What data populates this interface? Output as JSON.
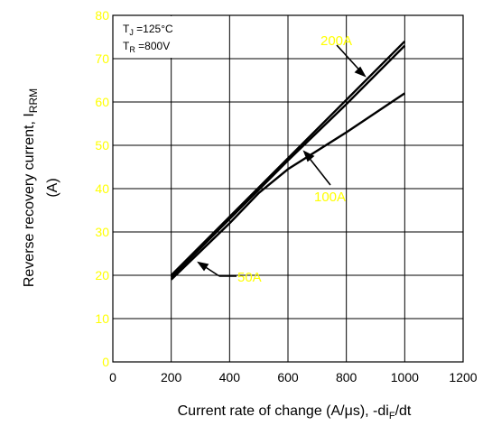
{
  "chart_data": {
    "type": "line",
    "xlabel": "Current rate of change (A/μs), -di",
    "xlabel_sub": "F",
    "xlabel_tail": "/dt",
    "ylabel_line1": "Reverse recovery current, I",
    "ylabel_sub": "RRM",
    "ylabel_line2": "(A)",
    "xlim": [
      0,
      1200
    ],
    "ylim": [
      0,
      80
    ],
    "xticks": [
      "0",
      "200",
      "400",
      "600",
      "800",
      "1000",
      "1200"
    ],
    "yticks": [
      "0",
      "10",
      "20",
      "30",
      "40",
      "50",
      "60",
      "70",
      "80"
    ],
    "grid": true,
    "conditions": {
      "tj_main": "T",
      "tj_sub": "J",
      "tj_value": " =125°C",
      "tr_main": "T",
      "tr_sub": "R",
      "tr_value": " =800V"
    },
    "series": [
      {
        "name": "200A",
        "x": [
          200,
          400,
          600,
          800,
          1000
        ],
        "values": [
          20,
          33.5,
          47,
          60.5,
          74
        ],
        "label_color": "#ffff00"
      },
      {
        "name": "100A",
        "x": [
          200,
          400,
          600,
          800,
          1000
        ],
        "values": [
          19.5,
          33,
          46.5,
          59.5,
          73
        ],
        "label_color": "#ffff00"
      },
      {
        "name": "50A",
        "x": [
          200,
          400,
          500,
          600,
          800,
          1000
        ],
        "values": [
          19,
          32,
          39,
          44.5,
          53,
          62
        ],
        "label_color": "#ffff00"
      }
    ],
    "labels": [
      "200A",
      "100A",
      "50A"
    ]
  }
}
